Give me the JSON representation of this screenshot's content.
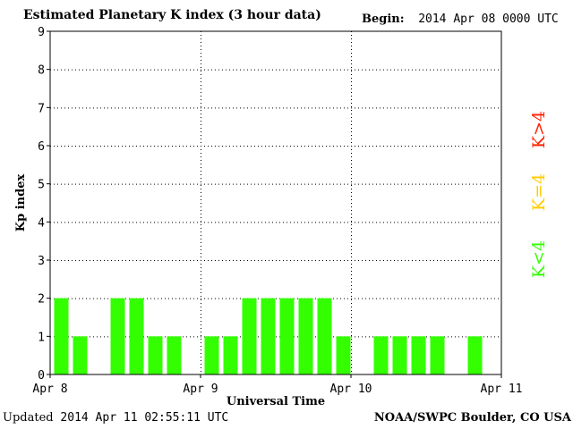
{
  "header": {
    "title": "Estimated Planetary K index (3 hour data)",
    "begin_label": "Begin:",
    "begin_value": "2014 Apr 08 0000 UTC"
  },
  "footer": {
    "updated_label": "Updated",
    "updated_value": "2014 Apr 11 02:55:11 UTC",
    "credit": "NOAA/SWPC Boulder, CO USA"
  },
  "legend": [
    {
      "label": "K>4",
      "color": "#ff2200"
    },
    {
      "label": "K=4",
      "color": "#ffcc00"
    },
    {
      "label": "K<4",
      "color": "#33ff00"
    }
  ],
  "chart_data": {
    "type": "bar",
    "title": "Estimated Planetary K index (3 hour data)",
    "xlabel": "Universal Time",
    "ylabel": "Kp index",
    "ylim": [
      0,
      9
    ],
    "yticks": [
      "0",
      "1",
      "2",
      "3",
      "4",
      "5",
      "6",
      "7",
      "8",
      "9"
    ],
    "xticks": [
      "Apr 8",
      "Apr 9",
      "Apr 10",
      "Apr 11"
    ],
    "bar_color": "#33ff00",
    "grid": true,
    "intervals_per_day": 8,
    "days": 3,
    "values": [
      2,
      1,
      0,
      2,
      2,
      1,
      1,
      0,
      1,
      1,
      2,
      2,
      2,
      2,
      2,
      1,
      0,
      1,
      1,
      1,
      1,
      0,
      1,
      0
    ]
  }
}
